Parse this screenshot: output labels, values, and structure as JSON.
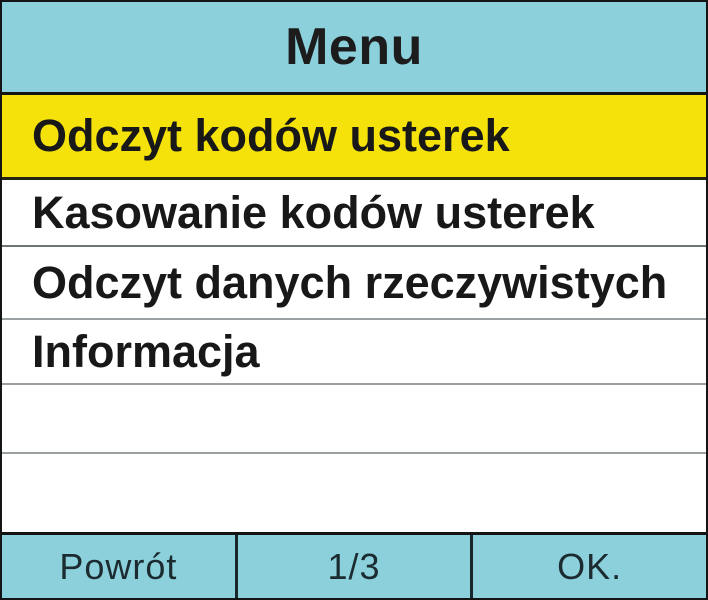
{
  "title": "Menu",
  "menu": {
    "items": [
      {
        "label": "Odczyt kodów usterek",
        "selected": true
      },
      {
        "label": "Kasowanie kodów usterek",
        "selected": false
      },
      {
        "label": "Odczyt danych rzeczywistych",
        "selected": false
      },
      {
        "label": "Informacja",
        "selected": false
      }
    ]
  },
  "footer": {
    "back_label": "Powrót",
    "page_indicator": "1/3",
    "ok_label": "OK."
  },
  "colors": {
    "header_bg": "#8CD0DC",
    "footer_bg": "#8CD0DC",
    "selected_item_bg": "#F5E20A",
    "text": "#181818",
    "separator_gray": "#9aa0a2",
    "border_black": "#141414"
  }
}
